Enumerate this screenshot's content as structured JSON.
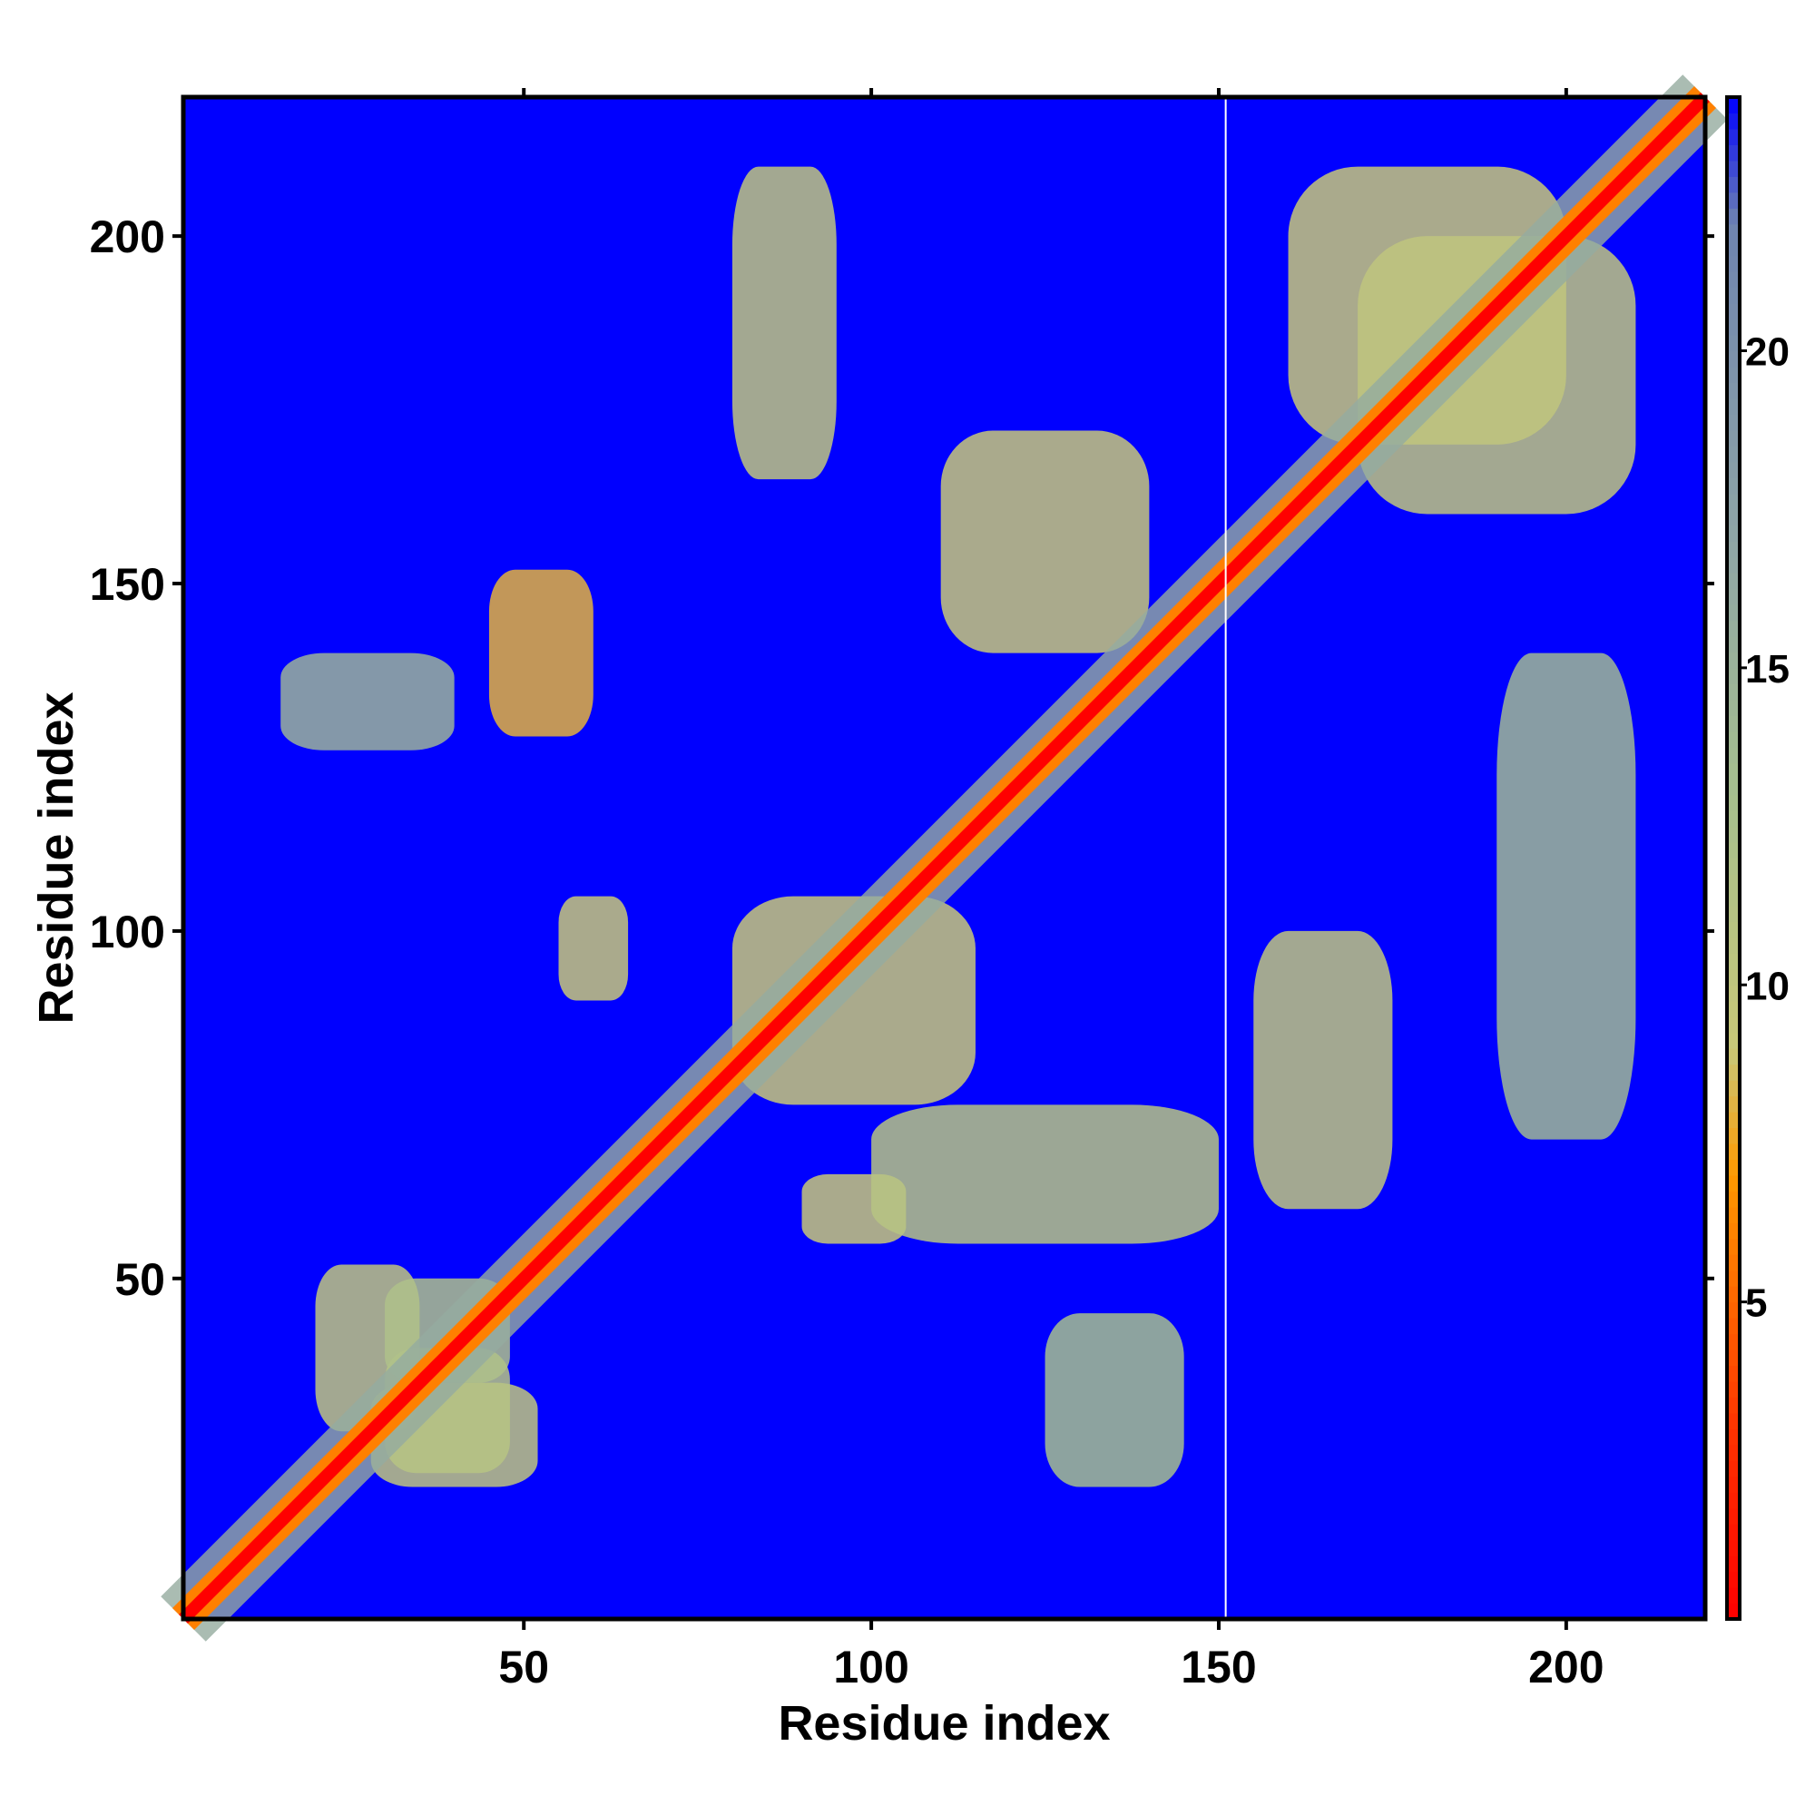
{
  "chart_data": {
    "type": "heatmap",
    "title": "",
    "xlabel": "Residue index",
    "ylabel": "Residue index",
    "xlim": [
      1,
      220
    ],
    "ylim": [
      1,
      220
    ],
    "x_ticks": [
      50,
      100,
      150,
      200
    ],
    "x_tick_labels": [
      "50",
      "100",
      "150",
      "200"
    ],
    "y_ticks": [
      50,
      100,
      150,
      200
    ],
    "y_tick_labels": [
      "50",
      "100",
      "150",
      "200"
    ],
    "colorbar": {
      "range": [
        0,
        24
      ],
      "ticks": [
        5,
        10,
        15,
        20
      ],
      "tick_labels": [
        "5",
        "10",
        "15",
        "20"
      ],
      "colors": [
        {
          "value": 0,
          "color": "#ff0000"
        },
        {
          "value": 3,
          "color": "#ff3300"
        },
        {
          "value": 7,
          "color": "#ff9900"
        },
        {
          "value": 9,
          "color": "#c8c878"
        },
        {
          "value": 13,
          "color": "#a6bf8e"
        },
        {
          "value": 17,
          "color": "#8fa6a6"
        },
        {
          "value": 22,
          "color": "#6f84b0"
        },
        {
          "value": 24,
          "color": "#0000ff"
        }
      ]
    },
    "cutoff_color": "#0000ff",
    "background_value": 24,
    "diagonal": {
      "from": 1,
      "to": 220,
      "value": 0
    },
    "gap_column": 151,
    "contact_regions": [
      {
        "x": [
          20,
          35
        ],
        "y": [
          28,
          52
        ],
        "value": 10
      },
      {
        "x": [
          28,
          52
        ],
        "y": [
          20,
          35
        ],
        "value": 10
      },
      {
        "x": [
          30,
          48
        ],
        "y": [
          22,
          40
        ],
        "value": 11
      },
      {
        "x": [
          30,
          48
        ],
        "y": [
          35,
          50
        ],
        "value": 12
      },
      {
        "x": [
          55,
          65
        ],
        "y": [
          90,
          105
        ],
        "value": 9
      },
      {
        "x": [
          90,
          105
        ],
        "y": [
          55,
          65
        ],
        "value": 9
      },
      {
        "x": [
          45,
          60
        ],
        "y": [
          128,
          152
        ],
        "value": 8
      },
      {
        "x": [
          80,
          95
        ],
        "y": [
          165,
          210
        ],
        "value": 10
      },
      {
        "x": [
          100,
          150
        ],
        "y": [
          55,
          75
        ],
        "value": 11
      },
      {
        "x": [
          110,
          140
        ],
        "y": [
          140,
          172
        ],
        "value": 9
      },
      {
        "x": [
          160,
          200
        ],
        "y": [
          170,
          210
        ],
        "value": 9
      },
      {
        "x": [
          170,
          210
        ],
        "y": [
          160,
          200
        ],
        "value": 10
      },
      {
        "x": [
          155,
          175
        ],
        "y": [
          60,
          100
        ],
        "value": 10
      },
      {
        "x": [
          190,
          210
        ],
        "y": [
          70,
          140
        ],
        "value": 14
      },
      {
        "x": [
          15,
          40
        ],
        "y": [
          126,
          140
        ],
        "value": 15
      },
      {
        "x": [
          80,
          115
        ],
        "y": [
          75,
          105
        ],
        "value": 9
      },
      {
        "x": [
          125,
          145
        ],
        "y": [
          20,
          45
        ],
        "value": 13
      }
    ]
  }
}
